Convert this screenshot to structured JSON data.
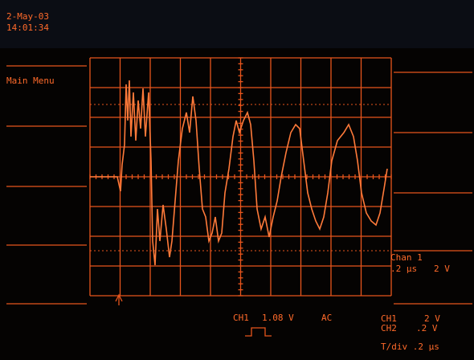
{
  "header": {
    "date": "2-May-03",
    "time": "14:01:34"
  },
  "menu": {
    "title": "Main Menu"
  },
  "channel_panel": {
    "title": "Chan 1",
    "timebase": ".2 µs",
    "volts": "2 V"
  },
  "trigger": {
    "channel": "CH1",
    "level": "1.08 V",
    "coupling": "AC"
  },
  "status": {
    "ch1_label": "CH1",
    "ch1_volts": "2 V",
    "ch2_label": "CH2",
    "ch2_volts": ".2 V",
    "time_div": "T/div .2 µs"
  }
}
